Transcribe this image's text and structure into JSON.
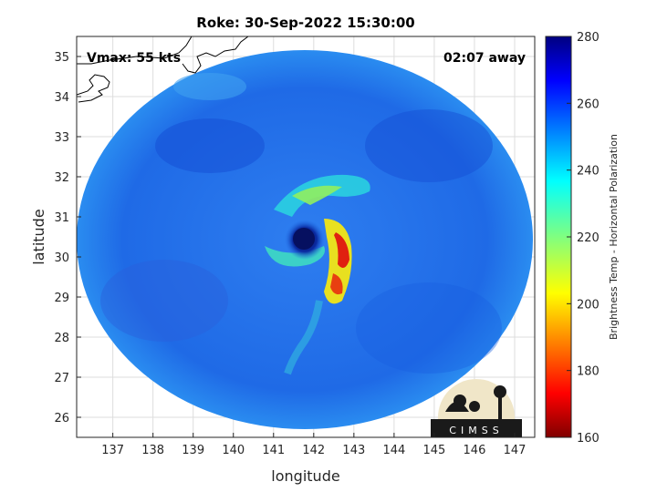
{
  "title": "Roke: 30-Sep-2022 15:30:00",
  "vmax_label": "Vmax: 55 kts",
  "time_away_label": "02:07 away",
  "xlabel": "longitude",
  "ylabel": "latitude",
  "colorbar_label": "Brightness Temp - Horizontal Polarization",
  "logo_text": "CIMSS",
  "x_ticks": [
    "137",
    "138",
    "139",
    "140",
    "141",
    "142",
    "143",
    "144",
    "145",
    "146",
    "147"
  ],
  "y_ticks": [
    "26",
    "27",
    "28",
    "29",
    "30",
    "31",
    "32",
    "33",
    "34",
    "35"
  ],
  "colorbar_ticks": [
    "160",
    "180",
    "200",
    "220",
    "240",
    "260",
    "280"
  ],
  "colors": {
    "background_swath": "#1f6fe8",
    "storm_core": "#d01010",
    "eye": "#081a78",
    "band": "#f0e010"
  },
  "storm_center": {
    "lon": 141.8,
    "lat": 30.4
  }
}
